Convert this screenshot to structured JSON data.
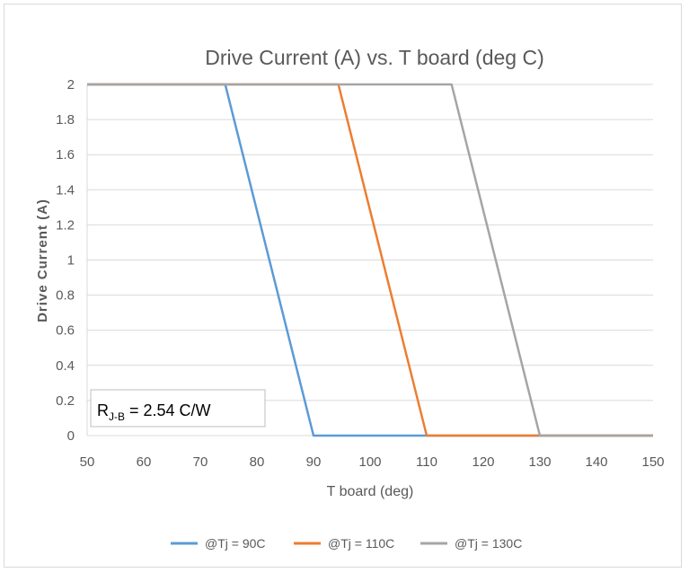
{
  "chart_data": {
    "type": "line",
    "title": "Drive Current (A) vs. T board (deg C)",
    "xlabel": "T board (deg)",
    "ylabel": "Drive Current (A)",
    "xlim": [
      50,
      150
    ],
    "ylim": [
      0,
      2
    ],
    "x_ticks": [
      "50",
      "60",
      "70",
      "80",
      "90",
      "100",
      "110",
      "120",
      "130",
      "140",
      "150"
    ],
    "y_ticks": [
      "0",
      "0.2",
      "0.4",
      "0.6",
      "0.8",
      "1",
      "1.2",
      "1.4",
      "1.6",
      "1.8",
      "2"
    ],
    "grid": "horizontal",
    "legend_position": "bottom",
    "series": [
      {
        "name": "@Tj = 90C",
        "color": "#5b9bd5",
        "points": [
          [
            50,
            2
          ],
          [
            74.4,
            2
          ],
          [
            90,
            0
          ],
          [
            150,
            0
          ]
        ]
      },
      {
        "name": "@Tj = 110C",
        "color": "#ed7d31",
        "points": [
          [
            50,
            2
          ],
          [
            94.4,
            2
          ],
          [
            110,
            0
          ],
          [
            150,
            0
          ]
        ]
      },
      {
        "name": "@Tj = 130C",
        "color": "#a5a5a5",
        "points": [
          [
            50,
            2
          ],
          [
            114.4,
            2
          ],
          [
            130,
            0
          ],
          [
            150,
            0
          ]
        ]
      }
    ],
    "annotation": {
      "main": "R",
      "subscript": "J-B",
      "rest": " = 2.54 C/W"
    }
  }
}
